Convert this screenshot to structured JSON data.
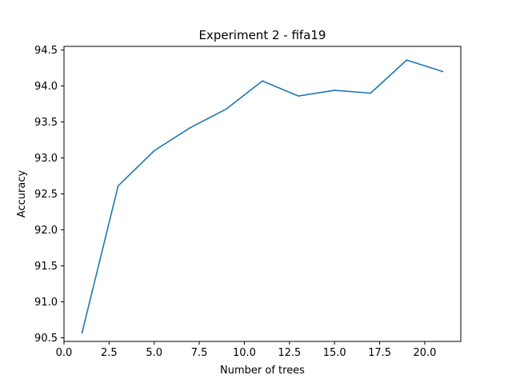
{
  "chart_data": {
    "type": "line",
    "title": "Experiment 2 - fifa19",
    "xlabel": "Number of trees",
    "ylabel": "Accuracy",
    "xlim": [
      0.0,
      22.0
    ],
    "ylim": [
      90.45,
      94.55
    ],
    "xticks": [
      0.0,
      2.5,
      5.0,
      7.5,
      10.0,
      12.5,
      15.0,
      17.5,
      20.0
    ],
    "xtick_labels": [
      "0.0",
      "2.5",
      "5.0",
      "7.5",
      "10.0",
      "12.5",
      "15.0",
      "17.5",
      "20.0"
    ],
    "yticks": [
      90.5,
      91.0,
      91.5,
      92.0,
      92.5,
      93.0,
      93.5,
      94.0,
      94.5
    ],
    "ytick_labels": [
      "90.5",
      "91.0",
      "91.5",
      "92.0",
      "92.5",
      "93.0",
      "93.5",
      "94.0",
      "94.5"
    ],
    "grid": false,
    "legend": "none",
    "series": [
      {
        "color": "#1f77b4",
        "x": [
          1,
          3,
          5,
          7,
          9,
          11,
          13,
          15,
          17,
          19,
          21
        ],
        "y": [
          90.57,
          92.61,
          93.1,
          93.42,
          93.68,
          94.07,
          93.86,
          93.94,
          93.9,
          94.36,
          94.2
        ]
      }
    ]
  }
}
